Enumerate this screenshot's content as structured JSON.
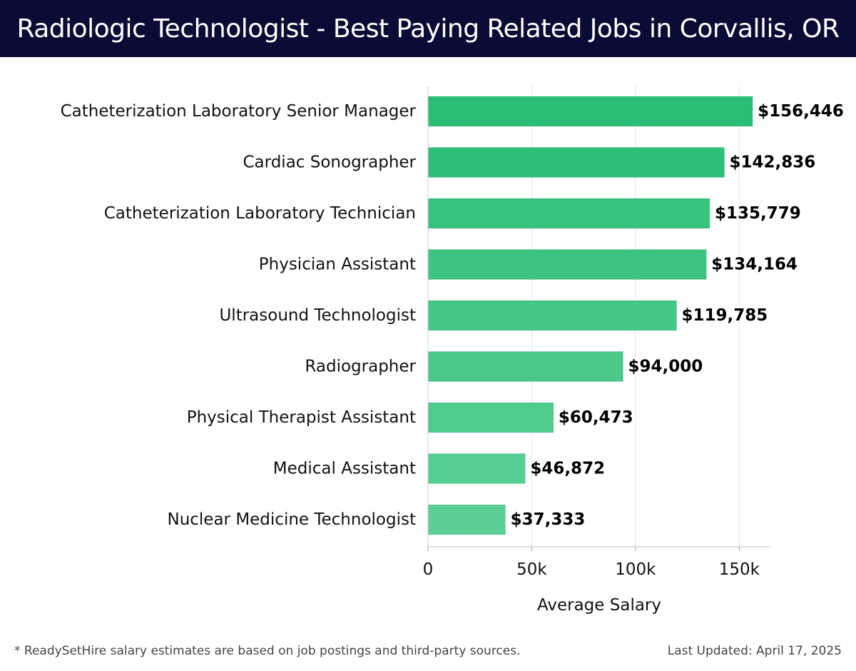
{
  "header": {
    "title": "Radiologic Technologist - Best Paying Related Jobs in Corvallis, OR"
  },
  "colors": {
    "header_bg": "#0b0c35",
    "bar_dark": "#2abd74",
    "bar_light": "#5ccf97"
  },
  "chart_data": {
    "type": "bar",
    "orientation": "horizontal",
    "categories": [
      "Catheterization Laboratory Senior Manager",
      "Cardiac Sonographer",
      "Catheterization Laboratory Technician",
      "Physician Assistant",
      "Ultrasound Technologist",
      "Radiographer",
      "Physical Therapist Assistant",
      "Medical Assistant",
      "Nuclear Medicine Technologist"
    ],
    "values": [
      156446,
      142836,
      135779,
      134164,
      119785,
      94000,
      60473,
      46872,
      37333
    ],
    "value_labels": [
      "$156,446",
      "$142,836",
      "$135,779",
      "$134,164",
      "$119,785",
      "$94,000",
      "$60,473",
      "$46,872",
      "$37,333"
    ],
    "xlabel": "Average Salary",
    "ylabel": "",
    "xlim": [
      0,
      165000
    ],
    "x_ticks": [
      0,
      50000,
      100000,
      150000
    ],
    "x_tick_labels": [
      "0",
      "50k",
      "100k",
      "150k"
    ],
    "grid": "vertical"
  },
  "footer": {
    "note": "* ReadySetHire salary estimates are based on job postings and third-party sources.",
    "updated": "Last Updated: April 17, 2025"
  }
}
